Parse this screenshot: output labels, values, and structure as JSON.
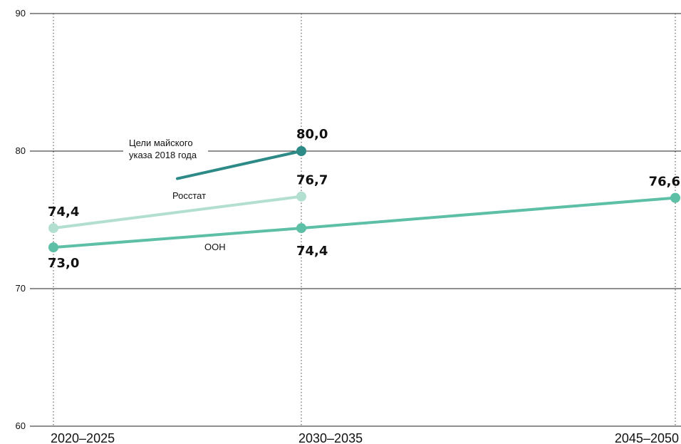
{
  "chart_data": {
    "type": "line",
    "title": "",
    "xlabel": "",
    "ylabel": "",
    "categories": [
      "2020–2025",
      "2030–2035",
      "2045–2050"
    ],
    "y_ticks": [
      "60",
      "70",
      "80",
      "90"
    ],
    "ylim": [
      60,
      90
    ],
    "grid": "horizontal solid at y ticks, vertical dotted at x ticks",
    "series": [
      {
        "name": "Цели майского указа 2018 года",
        "name_lines": [
          "Цели майского",
          "указа 2018 года"
        ],
        "color": "#2e8a86",
        "points": [
          {
            "x": "2030–2035",
            "y": 80.0,
            "label": "80,0"
          }
        ],
        "trend_start_y": 78.0
      },
      {
        "name": "Росстат",
        "color": "#b2dfcf",
        "points": [
          {
            "x": "2020–2025",
            "y": 74.4,
            "label": "74,4"
          },
          {
            "x": "2030–2035",
            "y": 76.7,
            "label": "76,7"
          }
        ]
      },
      {
        "name": "ООН",
        "color": "#5cbfa6",
        "points": [
          {
            "x": "2020–2025",
            "y": 73.0,
            "label": "73,0"
          },
          {
            "x": "2030–2035",
            "y": 74.4,
            "label": "74,4"
          },
          {
            "x": "2045–2050",
            "y": 76.6,
            "label": "76,6"
          }
        ]
      }
    ]
  }
}
